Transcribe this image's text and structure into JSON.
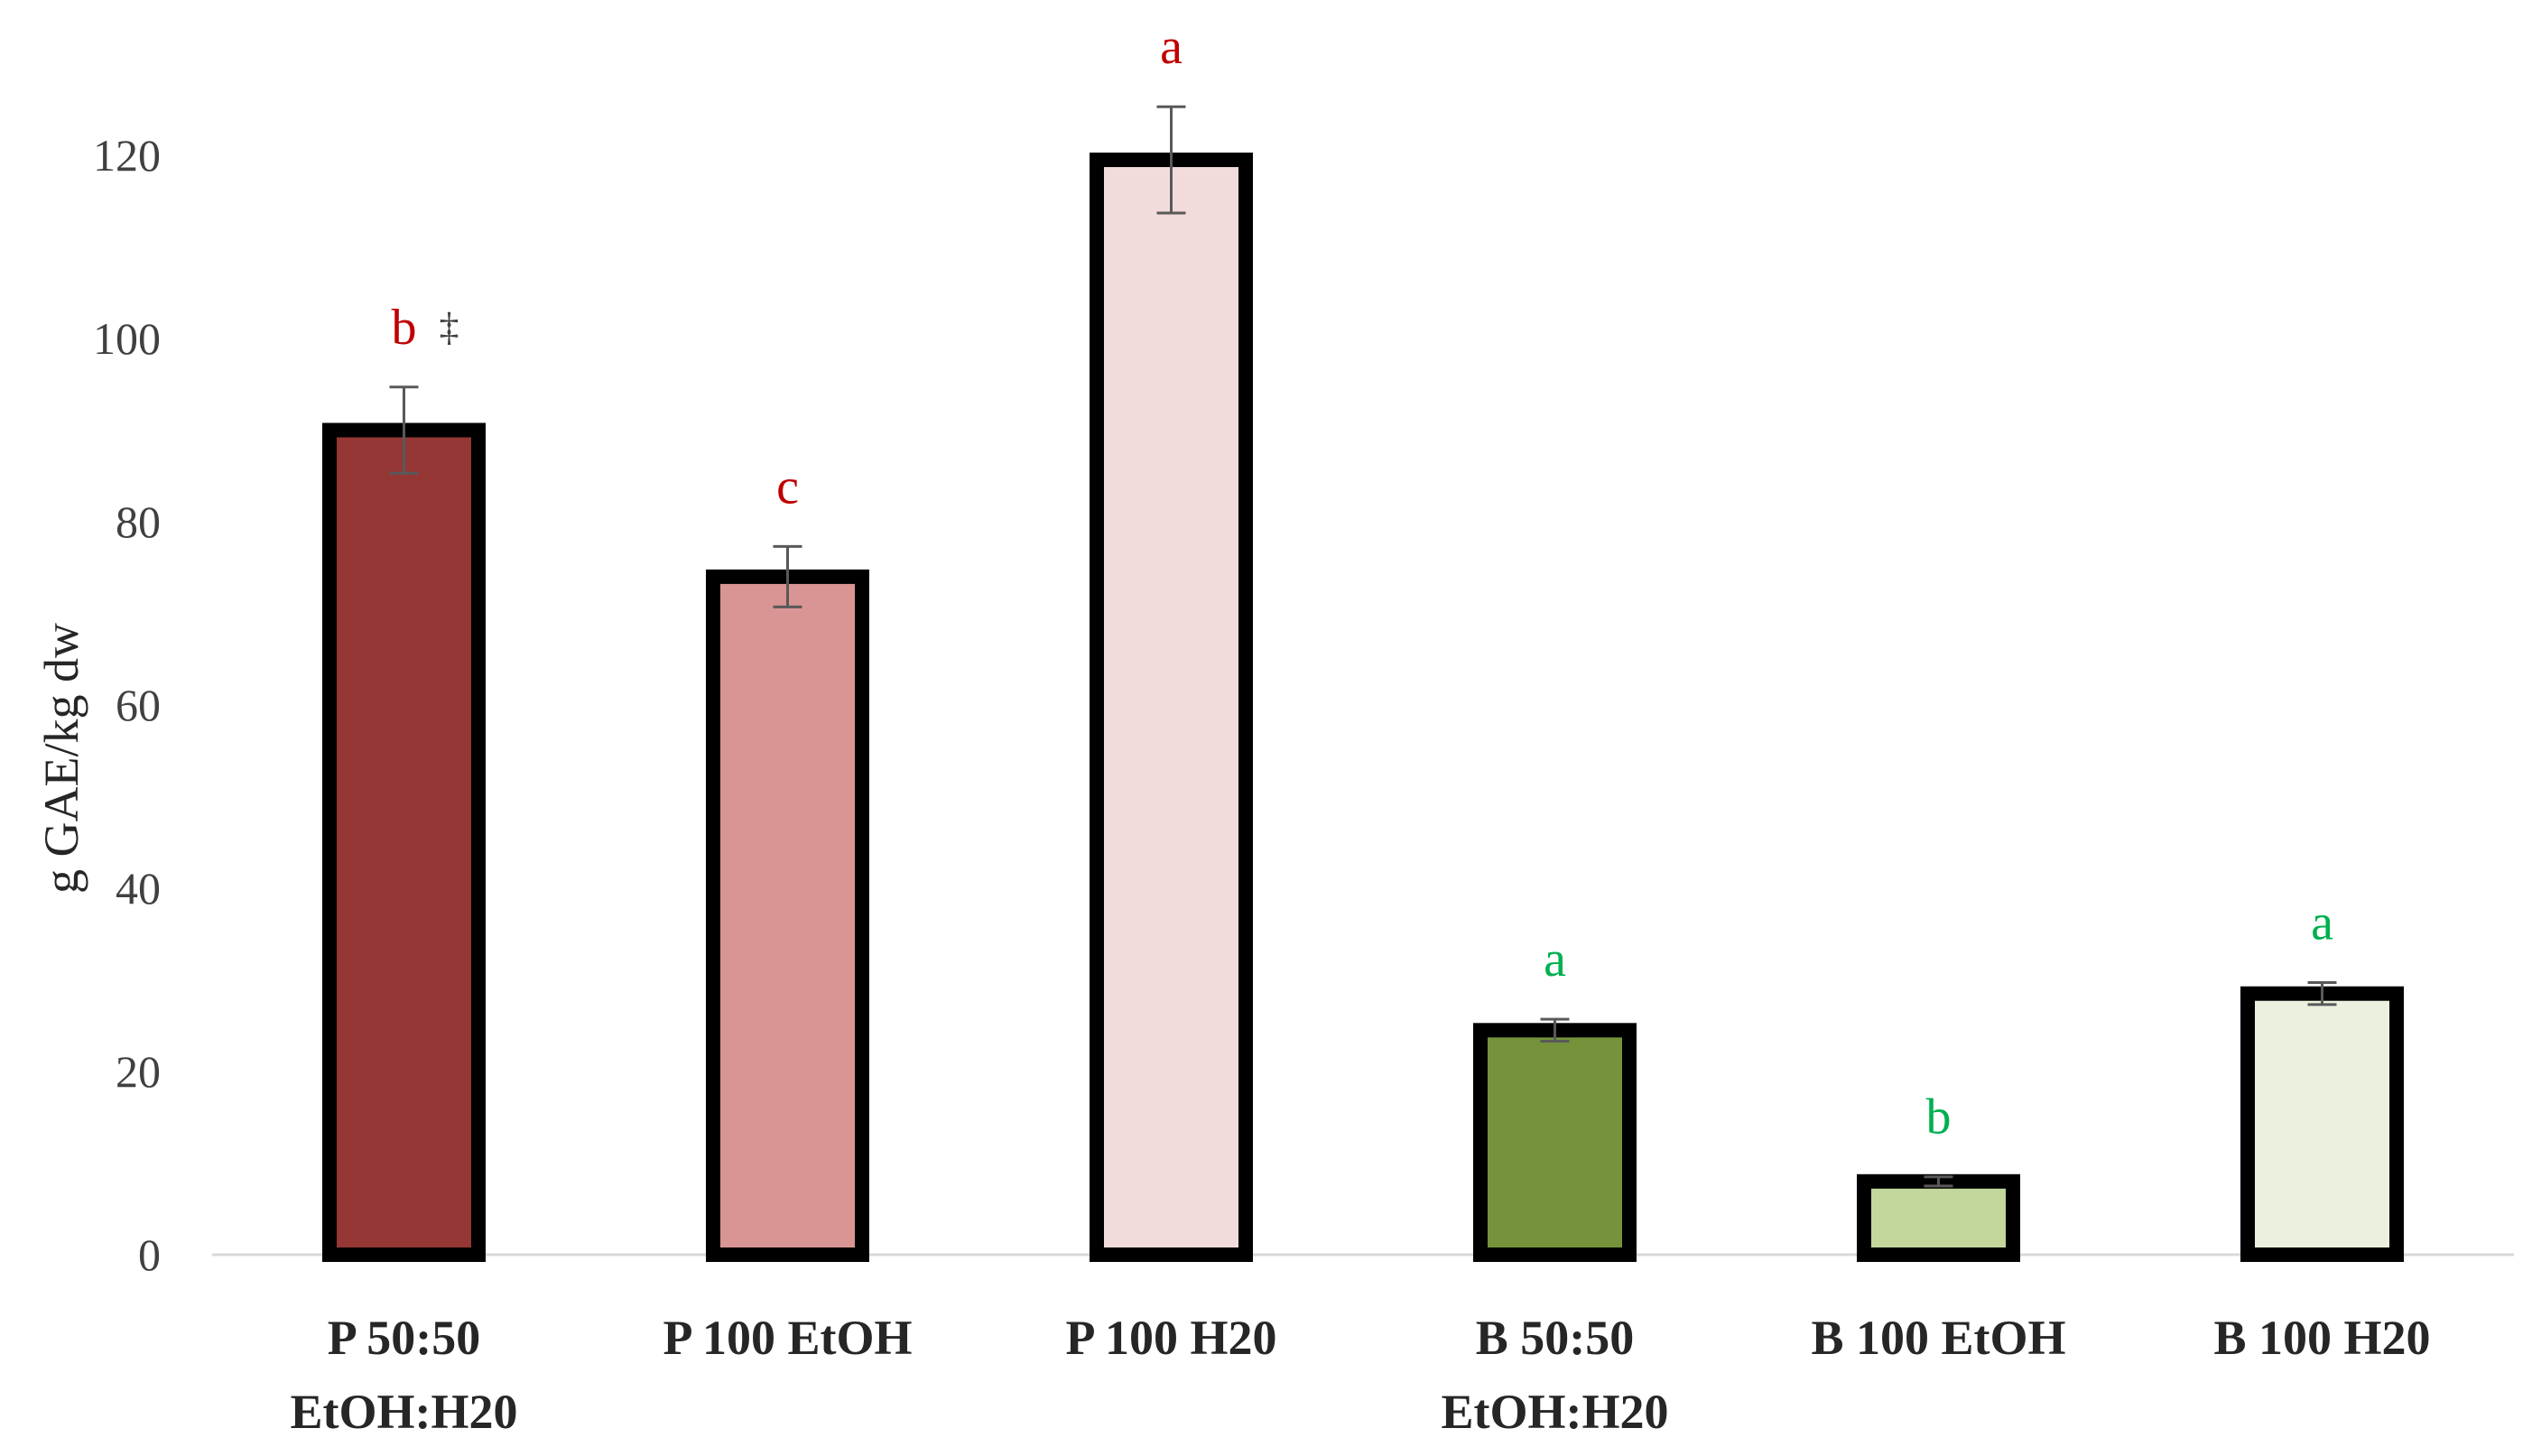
{
  "chart_data": {
    "type": "bar",
    "title": "",
    "xlabel": "",
    "ylabel": "g GAE/kg dw",
    "ylim": [
      0,
      120
    ],
    "yticks": [
      0,
      20,
      40,
      60,
      80,
      100,
      120
    ],
    "grid": false,
    "legend": "none",
    "categories": [
      [
        "P 50:50",
        "EtOH:H20"
      ],
      [
        "P 100 EtOH"
      ],
      [
        "P 100 H20"
      ],
      [
        "B 50:50",
        "EtOH:H20"
      ],
      [
        "B 100 EtOH"
      ],
      [
        "B 100 H20"
      ]
    ],
    "values": [
      90,
      74,
      119.5,
      24.5,
      8,
      28.5
    ],
    "errors": [
      4.7,
      3.3,
      5.8,
      1.2,
      0.5,
      1.2
    ],
    "significance": [
      "b",
      "c",
      "a",
      "a",
      "b",
      "a"
    ],
    "significance_extra": [
      "‡",
      "",
      "",
      "",
      "",
      ""
    ],
    "significance_colors": [
      "#c00000",
      "#c00000",
      "#c00000",
      "#00b050",
      "#00b050",
      "#00b050"
    ],
    "bar_colors": [
      "#953735",
      "#d99594",
      "#f2dcdb",
      "#76933c",
      "#c3d69b",
      "#ebf1de"
    ],
    "bar_edge_color": "#000000"
  }
}
